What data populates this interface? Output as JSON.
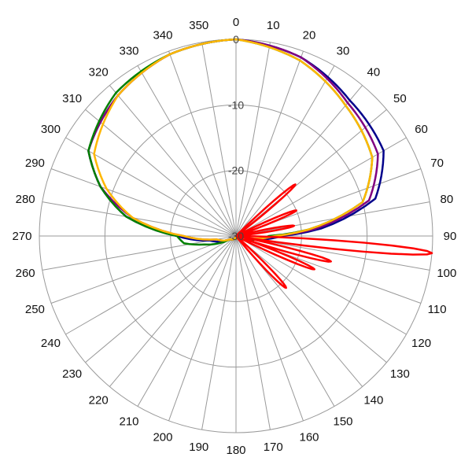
{
  "chart_data": {
    "type": "polar-line",
    "title": "",
    "angle_unit": "degrees",
    "angle_direction": "clockwise-from-top",
    "angle_ticks": [
      0,
      10,
      20,
      30,
      40,
      50,
      60,
      70,
      80,
      90,
      100,
      110,
      120,
      130,
      140,
      150,
      160,
      170,
      180,
      190,
      200,
      210,
      220,
      230,
      240,
      250,
      260,
      270,
      280,
      290,
      300,
      310,
      320,
      330,
      340,
      350
    ],
    "r_range": [
      -30,
      0
    ],
    "r_ticks": [
      0,
      -10,
      -20,
      -30
    ],
    "grid": true,
    "legend": "none",
    "series": [
      {
        "color": "#00008b",
        "points": [
          [
            0,
            0
          ],
          [
            20,
            -1
          ],
          [
            40,
            -3
          ],
          [
            60,
            -4
          ],
          [
            75,
            -8
          ],
          [
            85,
            -17
          ],
          [
            90,
            -23
          ],
          [
            100,
            -27
          ],
          [
            120,
            -29
          ],
          [
            180,
            -30
          ],
          [
            240,
            -29
          ],
          [
            260,
            -26
          ],
          [
            270,
            -21
          ],
          [
            280,
            -13
          ],
          [
            290,
            -8
          ],
          [
            300,
            -4
          ],
          [
            320,
            -2
          ],
          [
            340,
            -0.5
          ],
          [
            360,
            0
          ]
        ]
      },
      {
        "color": "#800080",
        "points": [
          [
            0,
            0
          ],
          [
            20,
            -1
          ],
          [
            40,
            -3.5
          ],
          [
            60,
            -5
          ],
          [
            75,
            -9
          ],
          [
            85,
            -18
          ],
          [
            90,
            -24
          ],
          [
            100,
            -28
          ],
          [
            120,
            -29
          ],
          [
            180,
            -30
          ],
          [
            240,
            -29
          ],
          [
            260,
            -27
          ],
          [
            270,
            -22
          ],
          [
            280,
            -14
          ],
          [
            290,
            -8
          ],
          [
            300,
            -4
          ],
          [
            320,
            -2
          ],
          [
            340,
            -0.5
          ],
          [
            360,
            0
          ]
        ]
      },
      {
        "color": "#008000",
        "points": [
          [
            0,
            0
          ],
          [
            20,
            -1.5
          ],
          [
            40,
            -4
          ],
          [
            60,
            -6
          ],
          [
            75,
            -10
          ],
          [
            85,
            -19
          ],
          [
            90,
            -25
          ],
          [
            100,
            -27
          ],
          [
            120,
            -29
          ],
          [
            180,
            -30
          ],
          [
            240,
            -29
          ],
          [
            255,
            -25
          ],
          [
            262,
            -22
          ],
          [
            270,
            -21
          ],
          [
            280,
            -13
          ],
          [
            290,
            -8
          ],
          [
            300,
            -4
          ],
          [
            320,
            -1.5
          ],
          [
            340,
            -0.5
          ],
          [
            360,
            0
          ]
        ]
      },
      {
        "color": "#ffb700",
        "points": [
          [
            0,
            0
          ],
          [
            20,
            -1.5
          ],
          [
            40,
            -4
          ],
          [
            60,
            -6
          ],
          [
            75,
            -10
          ],
          [
            85,
            -19
          ],
          [
            90,
            -24
          ],
          [
            100,
            -28
          ],
          [
            120,
            -29
          ],
          [
            180,
            -30
          ],
          [
            240,
            -29
          ],
          [
            260,
            -27
          ],
          [
            270,
            -22
          ],
          [
            280,
            -14
          ],
          [
            290,
            -9
          ],
          [
            300,
            -5
          ],
          [
            320,
            -2
          ],
          [
            340,
            -0.5
          ],
          [
            360,
            0
          ]
        ]
      },
      {
        "color": "#ff0000",
        "lobes": [
          {
            "center": 49,
            "peak": -18,
            "width": 5
          },
          {
            "center": 67,
            "peak": -20,
            "width": 5
          },
          {
            "center": 80,
            "peak": -21,
            "width": 5
          },
          {
            "center": 95,
            "peak": 0,
            "width": 5
          },
          {
            "center": 105,
            "peak": -15,
            "width": 5
          },
          {
            "center": 113,
            "peak": -17,
            "width": 5
          },
          {
            "center": 136,
            "peak": -19,
            "width": 6
          }
        ]
      }
    ]
  }
}
